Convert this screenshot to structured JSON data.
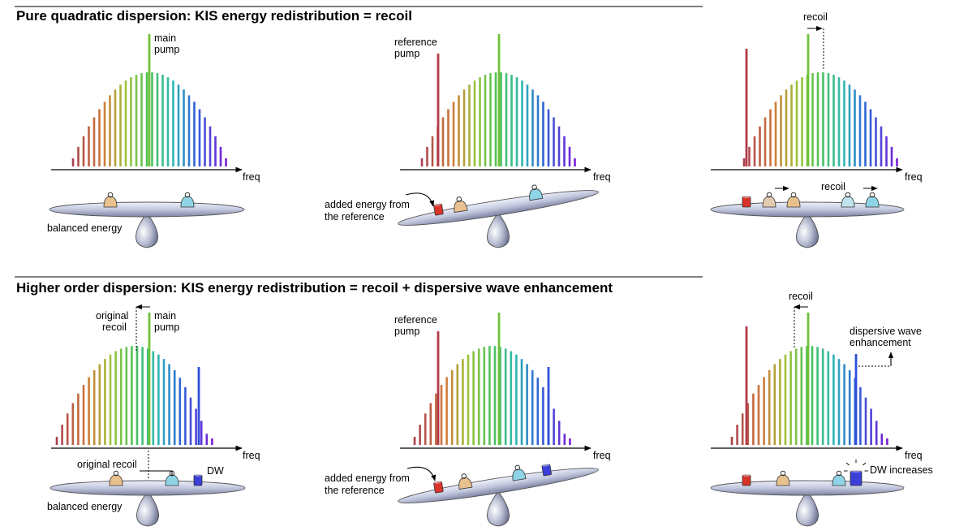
{
  "rows": [
    {
      "title": "Pure quadratic dispersion: KIS energy redistribution = recoil",
      "panels": [
        {
          "freq_label": "freq",
          "pump_label": [
            "main",
            "pump"
          ],
          "seesaw_caption": "balanced energy"
        },
        {
          "freq_label": "freq",
          "pump_label": [
            "reference",
            "pump"
          ],
          "seesaw_caption": [
            "added energy from",
            "the reference"
          ]
        },
        {
          "freq_label": "freq",
          "recoil_label": "recoil",
          "seesaw_recoil_label": "recoil"
        }
      ]
    },
    {
      "title": "Higher order dispersion: KIS energy redistribution = recoil + dispersive wave enhancement",
      "panels": [
        {
          "freq_label": "freq",
          "pump_label": [
            "main",
            "pump"
          ],
          "original_recoil_label": [
            "original",
            "recoil"
          ],
          "seesaw_recoil_label": "original recoil",
          "dw_label": "DW",
          "seesaw_caption": "balanced energy"
        },
        {
          "freq_label": "freq",
          "pump_label": [
            "reference",
            "pump"
          ],
          "seesaw_caption": [
            "added energy from",
            "the reference"
          ]
        },
        {
          "freq_label": "freq",
          "recoil_label": "recoil",
          "dw_enh_label": [
            "dispersive wave",
            "enhancement"
          ],
          "dw_increase_label": "DW increases"
        }
      ]
    }
  ],
  "colors": {
    "spectrum_start": "#b23a48",
    "spectrum_end": "#7a1fd8",
    "pump": "#6fc13a",
    "reference": "#b23a48",
    "seesaw": "#c8cde0",
    "weight_red": "#d8342a",
    "weight_tan": "#e9c18f",
    "weight_cyan": "#8fd3e6",
    "weight_blue": "#3b3fd8"
  }
}
